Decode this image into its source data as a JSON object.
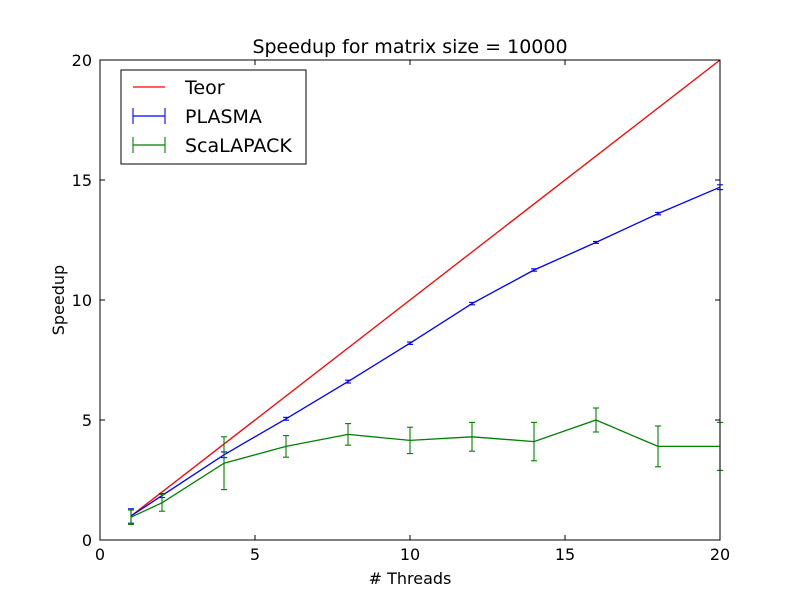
{
  "chart_data": {
    "type": "line",
    "title": "Speedup for matrix size = 10000",
    "xlabel": "# Threads",
    "ylabel": "Speedup",
    "xlim": [
      0,
      20
    ],
    "ylim": [
      0,
      20
    ],
    "xticks": [
      0,
      5,
      10,
      15,
      20
    ],
    "yticks": [
      0,
      5,
      10,
      15,
      20
    ],
    "x_tick_labels": [
      "0",
      "5",
      "10",
      "15",
      "20"
    ],
    "y_tick_labels": [
      "0",
      "5",
      "10",
      "15",
      "20"
    ],
    "grid": false,
    "legend_position": "top-left",
    "series": [
      {
        "name": "Teor",
        "color": "#ff0000",
        "error_bars": false,
        "x": [
          1,
          20
        ],
        "y": [
          1,
          20
        ]
      },
      {
        "name": "PLASMA",
        "color": "#0000ff",
        "error_bars": true,
        "x": [
          1,
          2,
          4,
          6,
          8,
          10,
          12,
          14,
          16,
          18,
          20
        ],
        "y": [
          1.0,
          1.85,
          3.55,
          5.05,
          6.6,
          8.2,
          9.85,
          11.25,
          12.4,
          13.6,
          14.7
        ],
        "err": [
          0.3,
          0.08,
          0.12,
          0.06,
          0.06,
          0.05,
          0.05,
          0.05,
          0.04,
          0.05,
          0.1
        ]
      },
      {
        "name": "ScaLAPACK",
        "color": "#008000",
        "error_bars": true,
        "x": [
          1,
          2,
          4,
          6,
          8,
          10,
          12,
          14,
          16,
          18,
          20
        ],
        "y": [
          0.95,
          1.55,
          3.2,
          3.9,
          4.4,
          4.15,
          4.3,
          4.1,
          5.0,
          3.9,
          3.9
        ],
        "err": [
          0.3,
          0.35,
          1.1,
          0.45,
          0.45,
          0.55,
          0.6,
          0.8,
          0.5,
          0.85,
          1.0
        ]
      }
    ]
  }
}
